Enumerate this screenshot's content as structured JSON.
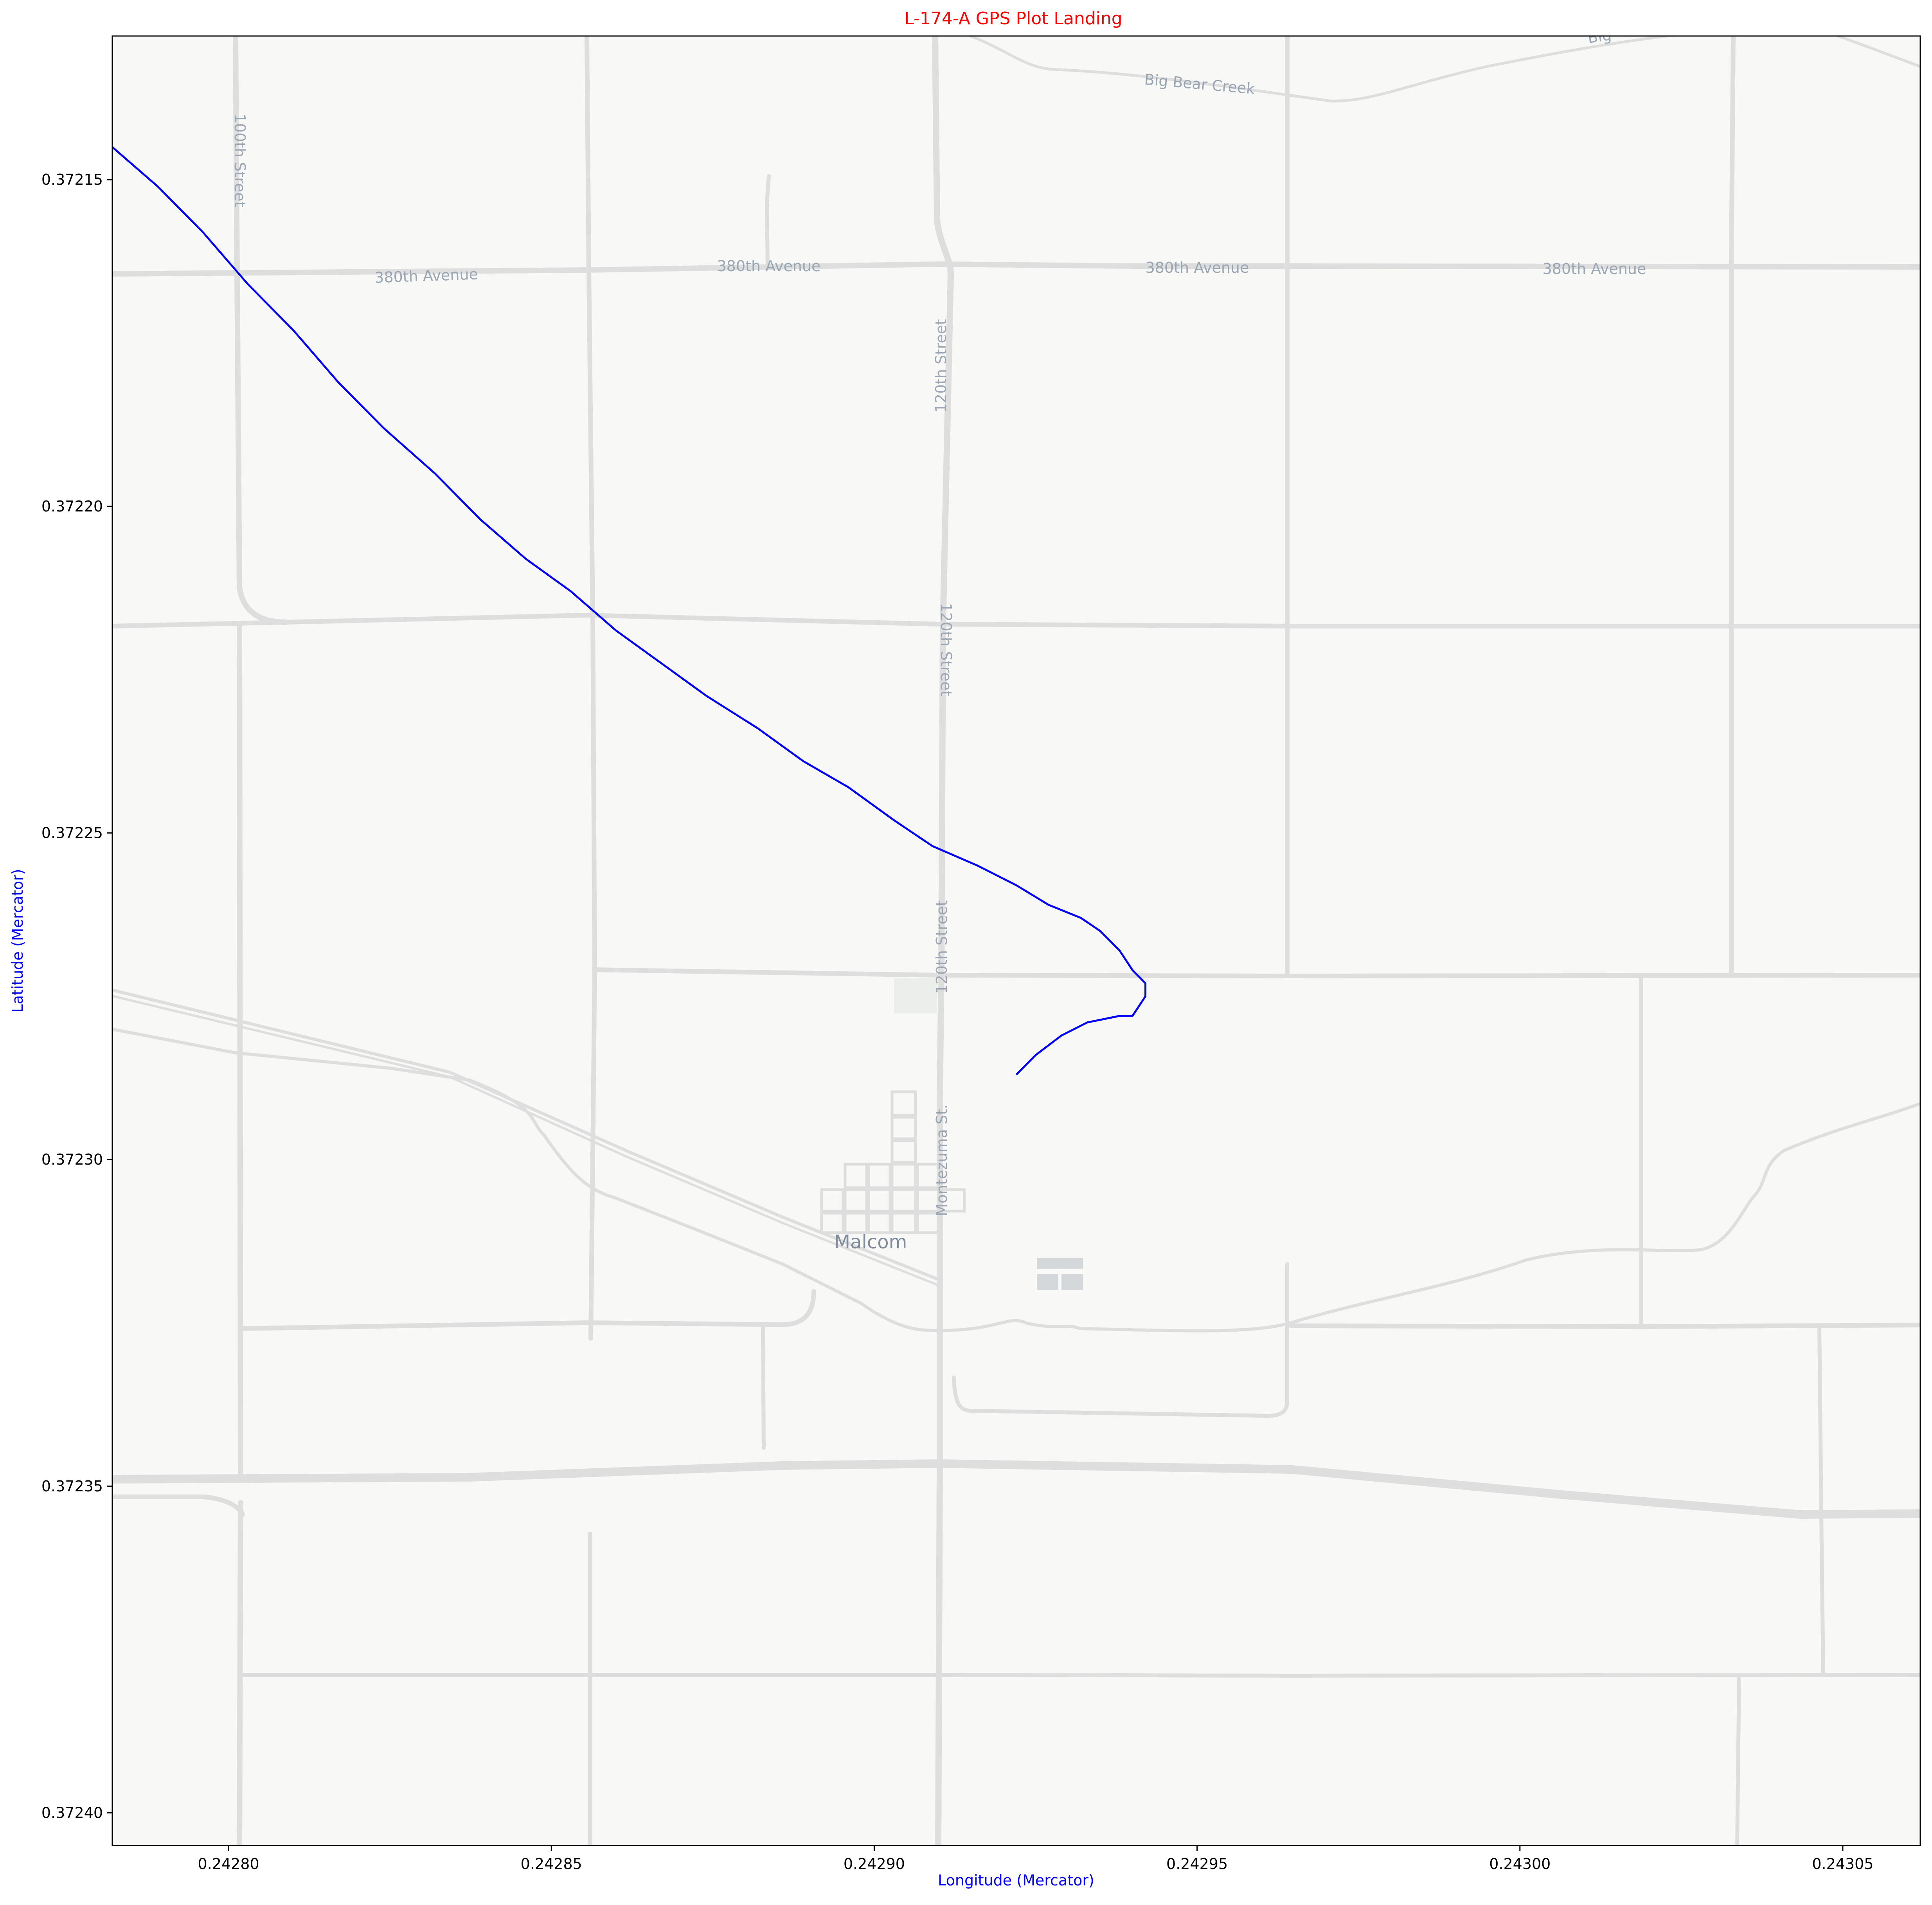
{
  "figure": {
    "title": "L-174-A GPS Plot Landing",
    "title_color": "#ff0000",
    "xlabel": "Longitude (Mercator)",
    "ylabel": "Latitude (Mercator)",
    "axis_label_color": "#0000ff"
  },
  "map": {
    "background": "#f8f8f7",
    "road_color": "#dedede",
    "labels": {
      "creek": "Big Bear Creek",
      "creek_partial": "Big",
      "avenue": "380th Avenue",
      "street_100": "100th Street",
      "street_120": "120th Street",
      "montezuma": "Montezuma St.",
      "town": "Malcom"
    }
  },
  "chart_data": {
    "type": "line",
    "title": "L-174-A GPS Plot Landing",
    "xlabel": "Longitude (Mercator)",
    "ylabel": "Latitude (Mercator)",
    "xlim": [
      0.242782,
      0.243062
    ],
    "ylim": [
      0.372405,
      0.372128
    ],
    "y_axis_inverted": true,
    "grid": false,
    "x_ticks": [
      "0.24280",
      "0.24285",
      "0.24290",
      "0.24295",
      "0.24300",
      "0.24305"
    ],
    "x_tick_values": [
      0.2428,
      0.24285,
      0.2429,
      0.24295,
      0.243,
      0.24305
    ],
    "y_ticks": [
      "0.37215",
      "0.37220",
      "0.37225",
      "0.37230",
      "0.37235",
      "0.37240"
    ],
    "y_tick_values": [
      0.37215,
      0.3722,
      0.37225,
      0.3723,
      0.37235,
      0.3724
    ],
    "series": [
      {
        "color": "#0000ff",
        "x": [
          0.242782,
          0.242789,
          0.242796,
          0.242803,
          0.24281,
          0.242817,
          0.242824,
          0.242832,
          0.242839,
          0.242846,
          0.242853,
          0.24286,
          0.242867,
          0.242874,
          0.242882,
          0.242889,
          0.242896,
          0.242903,
          0.242909,
          0.242916,
          0.242922,
          0.242927,
          0.242932,
          0.242935,
          0.242938,
          0.24294,
          0.242942,
          0.242942,
          0.24294,
          0.242938,
          0.242933,
          0.242929,
          0.242925,
          0.242922
        ],
        "y": [
          0.372145,
          0.372151,
          0.372158,
          0.372166,
          0.372173,
          0.372181,
          0.372188,
          0.372195,
          0.372202,
          0.372208,
          0.372213,
          0.372219,
          0.372224,
          0.372229,
          0.372234,
          0.372239,
          0.372243,
          0.372248,
          0.372252,
          0.372255,
          0.372258,
          0.372261,
          0.372263,
          0.372265,
          0.372268,
          0.372271,
          0.372273,
          0.372275,
          0.372278,
          0.372278,
          0.372279,
          0.372281,
          0.372284,
          0.372287
        ]
      }
    ]
  }
}
